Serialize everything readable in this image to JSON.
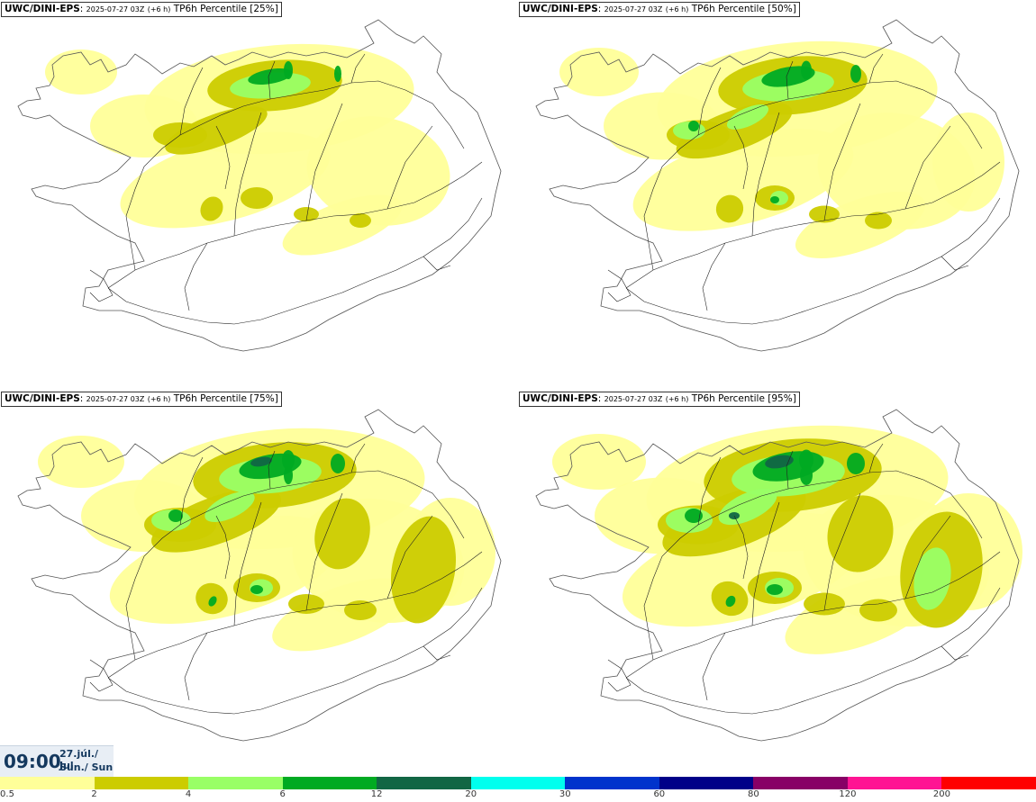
{
  "panels": [
    {
      "model": "UWC/DINI-EPS",
      "run": "2025-07-27 03Z",
      "lead": "(+6 h)",
      "field": "TP6h Percentile",
      "percentile": "[25%]",
      "level": 0
    },
    {
      "model": "UWC/DINI-EPS",
      "run": "2025-07-27 03Z",
      "lead": "(+6 h)",
      "field": "TP6h Percentile",
      "percentile": "[50%]",
      "level": 1
    },
    {
      "model": "UWC/DINI-EPS",
      "run": "2025-07-27 03Z",
      "lead": "(+6 h)",
      "field": "TP6h Percentile",
      "percentile": "[75%]",
      "level": 2
    },
    {
      "model": "UWC/DINI-EPS",
      "run": "2025-07-27 03Z",
      "lead": "(+6 h)",
      "field": "TP6h Percentile",
      "percentile": "[95%]",
      "level": 3
    }
  ],
  "valid_time": {
    "time": "09:00",
    "date": "27.júl./ Jul",
    "weekday": "Sun./ Sun"
  },
  "legend": {
    "labels": [
      "0.5",
      "2",
      "4",
      "6",
      "12",
      "20",
      "30",
      "60",
      "80",
      "120",
      "200"
    ],
    "colors": [
      "#ffff99",
      "#cccc00",
      "#99ff66",
      "#00aa22",
      "#116644",
      "#00ffee",
      "#0033cc",
      "#000088",
      "#880066",
      "#ff1493",
      "#ff0000"
    ]
  },
  "colors": {
    "coast": "#555555",
    "roads": "#222222",
    "timebox_text": "#14385e"
  }
}
